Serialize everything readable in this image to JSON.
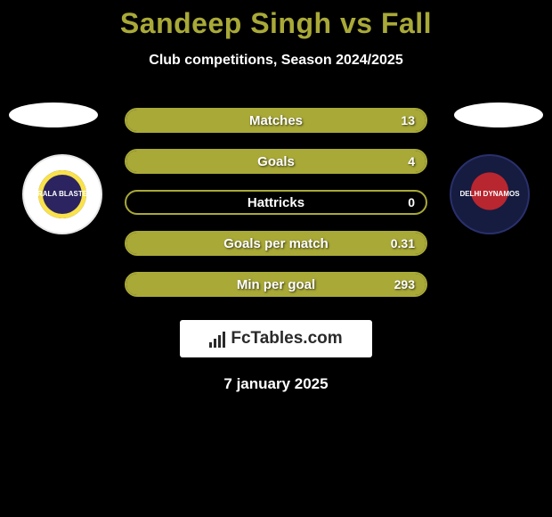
{
  "title": "Sandeep Singh vs Fall",
  "subtitle": "Club competitions, Season 2024/2025",
  "left_club_label": "KERALA BLASTERS",
  "right_club_label": "DELHI DYNAMOS",
  "stats": [
    {
      "name": "matches",
      "label": "Matches",
      "value_right": "13",
      "fill_pct": 100
    },
    {
      "name": "goals",
      "label": "Goals",
      "value_right": "4",
      "fill_pct": 100
    },
    {
      "name": "hattricks",
      "label": "Hattricks",
      "value_right": "0",
      "fill_pct": 0
    },
    {
      "name": "goals-per-match",
      "label": "Goals per match",
      "value_right": "0.31",
      "fill_pct": 100
    },
    {
      "name": "min-per-goal",
      "label": "Min per goal",
      "value_right": "293",
      "fill_pct": 100
    }
  ],
  "brand": "FcTables.com",
  "date": "7 january 2025",
  "colors": {
    "accent": "#a9a938",
    "background": "#000000",
    "text": "#ffffff",
    "brand_box_bg": "#ffffff",
    "brand_text": "#2a2a2a"
  }
}
